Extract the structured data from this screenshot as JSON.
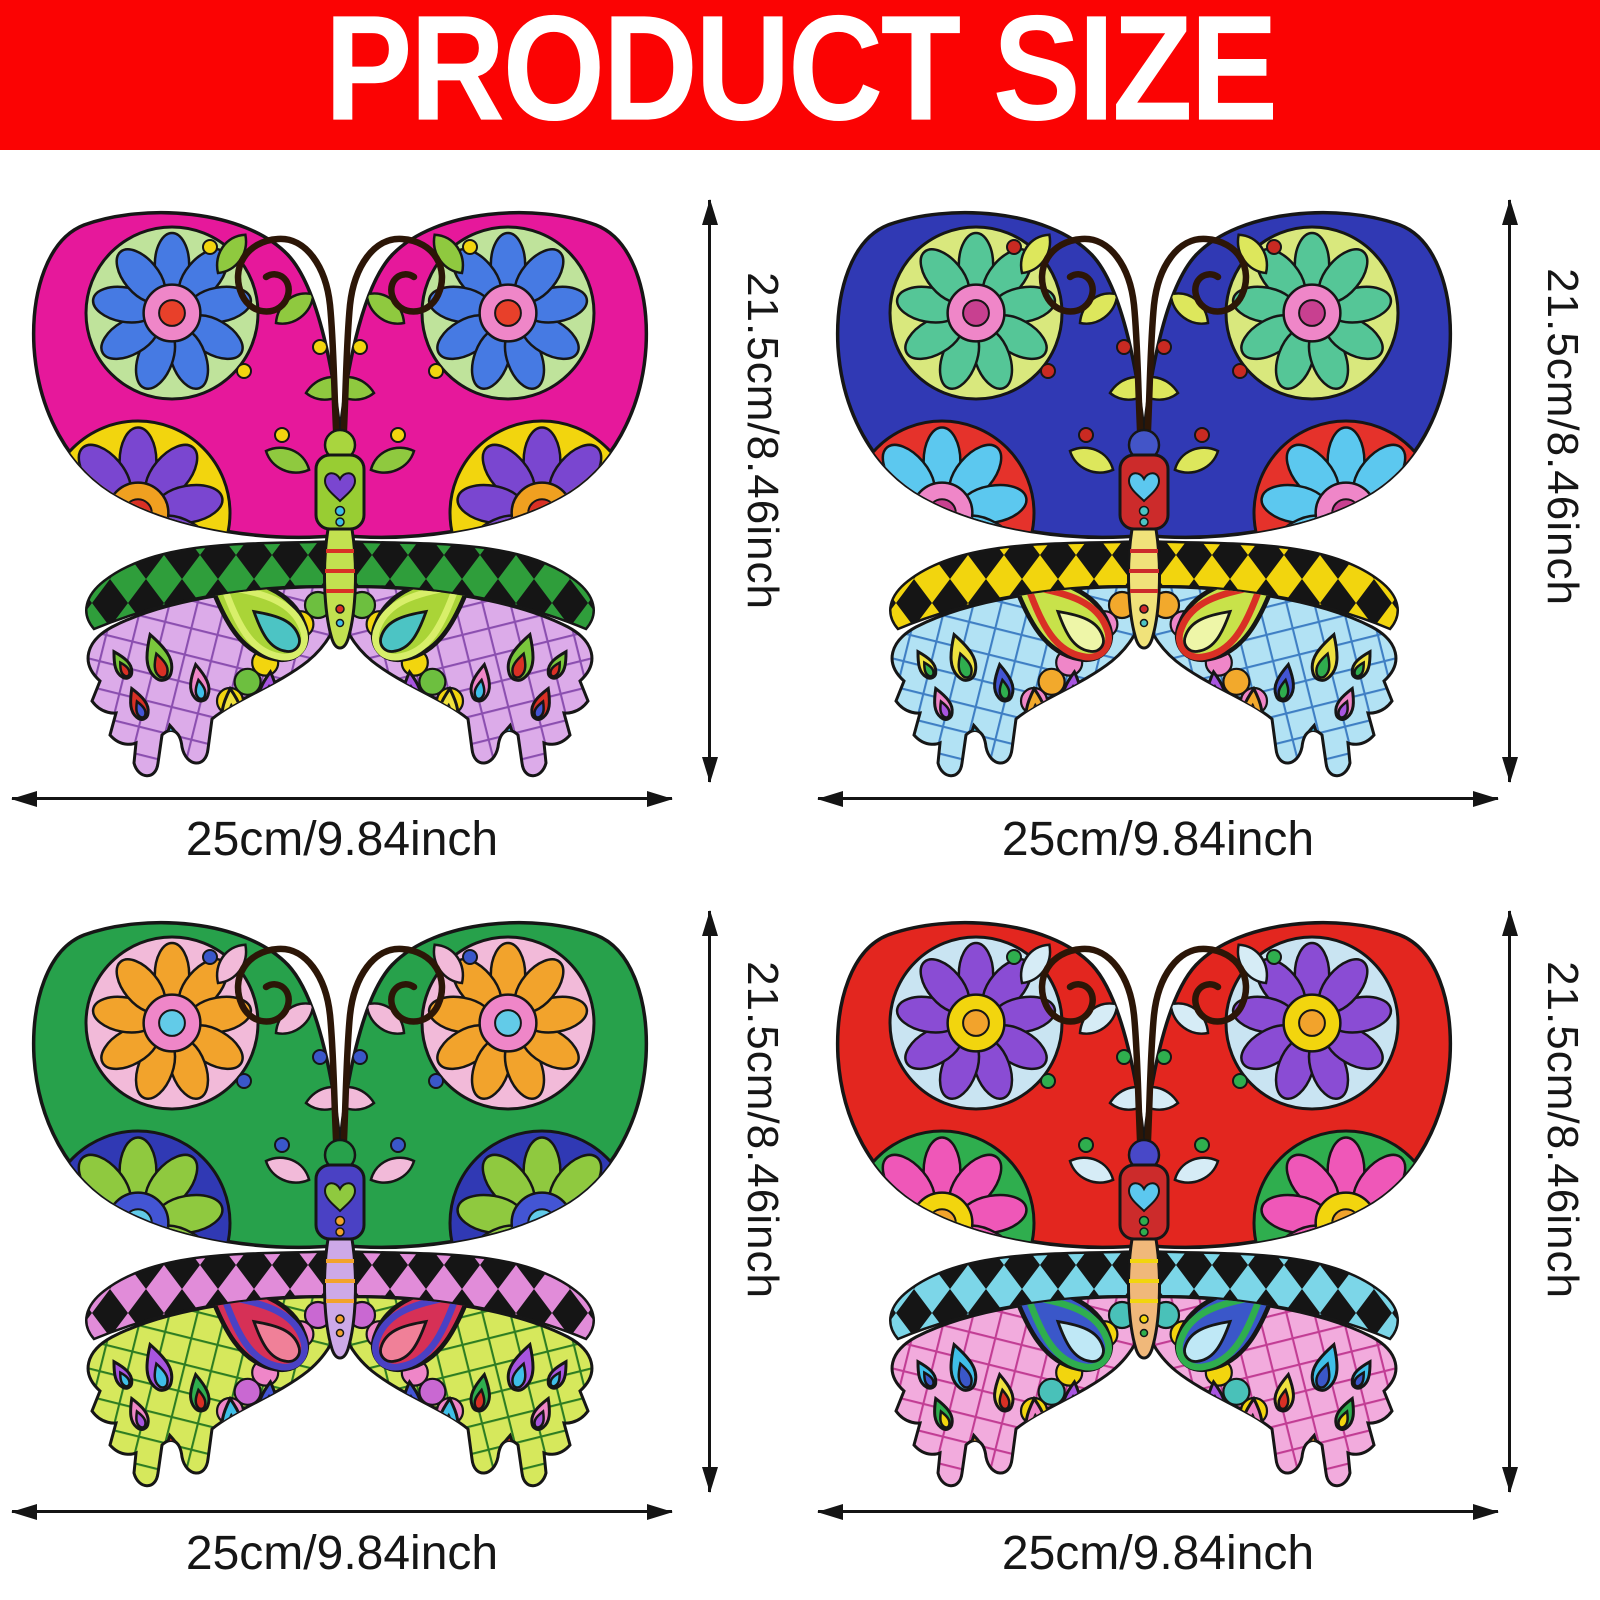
{
  "banner": {
    "title": "PRODUCT SIZE",
    "background": "#fb0303",
    "text_color": "#ffffff"
  },
  "dimensions": {
    "height": "21.5cm/8.46inch",
    "width": "25cm/9.84inch"
  },
  "butterflies": [
    {
      "position": "top-left",
      "theme": "magenta upper wings, blue and purple daisies, green-black harlequin band, lavender grid lower wings",
      "palette": {
        "wing": "#e6189b",
        "ringA": "#bfe39b",
        "petA": "#467ae3",
        "inA": "#ef86c8",
        "cenA": "#e8402a",
        "ringB": "#f2d50e",
        "petB": "#7a46d0",
        "inB": "#f0a020",
        "cenB": "#d93025",
        "leaf": "#8fc93f",
        "dot": "#f2d50e",
        "band": "#2f9e3b",
        "gridBg": "#dcabe9",
        "gridLine": "#8b4fb0",
        "scallop": "#6dbf3f",
        "scallop2": "#f2d50e",
        "pFill": "#aad437",
        "pRing": "#d8ef6a",
        "pInner": "#4cc4c4",
        "drops": [
          [
            "#7ac83c",
            "#d93025"
          ],
          [
            "#ef86c8",
            "#3fbfe8"
          ],
          [
            "#d93025",
            "#4355d4"
          ],
          [
            "#efe23f",
            "#2fae4e"
          ],
          [
            "#3fbfe8",
            "#f2d50e"
          ],
          [
            "#a855e0",
            "#ef86c8"
          ]
        ],
        "head": "#a9d53e",
        "thorax": "#98cd33",
        "heart": "#7a46d0",
        "abd": "#c2e050",
        "stripe": "#d93025",
        "bdot": "#3fbfe8",
        "ant": "#2c1607"
      }
    },
    {
      "position": "top-right",
      "theme": "indigo upper wings, teal and sky daisies, yellow-black harlequin band, light blue grid lower wings",
      "palette": {
        "wing": "#3039b4",
        "ringA": "#d9e87d",
        "petA": "#55c697",
        "inA": "#ef86c8",
        "cenA": "#c84090",
        "ringB": "#e5322b",
        "petB": "#5cc8ef",
        "inB": "#ef86c8",
        "cenB": "#c84090",
        "leaf": "#dde75c",
        "dot": "#c92a22",
        "band": "#f2d50e",
        "gridBg": "#b2e2f4",
        "gridLine": "#3f7fc4",
        "scallop": "#f2a92c",
        "scallop2": "#ef86c8",
        "pFill": "#c8e24a",
        "pRing": "#d93025",
        "pInner": "#eef6a8",
        "drops": [
          [
            "#efe23f",
            "#2fae4e"
          ],
          [
            "#4355d4",
            "#2fae4e"
          ],
          [
            "#ef86c8",
            "#a855e0"
          ],
          [
            "#f2a92c",
            "#d93025"
          ],
          [
            "#3fbfe8",
            "#efe23f"
          ],
          [
            "#a855e0",
            "#4355d4"
          ]
        ],
        "head": "#4355c8",
        "thorax": "#cc2b2b",
        "heart": "#5cc8ef",
        "abd": "#f0e27a",
        "stripe": "#cc2b2b",
        "bdot": "#4cc4c4",
        "ant": "#2c1607"
      }
    },
    {
      "position": "bottom-left",
      "theme": "green upper wings, orange and lime daisies, pink-black harlequin band, yellow-green grid lower wings",
      "palette": {
        "wing": "#27a14b",
        "ringA": "#f2bad9",
        "petA": "#f2a32c",
        "inA": "#ef86c8",
        "cenA": "#62cbe8",
        "ringB": "#3039b4",
        "petB": "#8fc93f",
        "inB": "#4355d4",
        "cenB": "#62cbe8",
        "leaf": "#f2bad9",
        "dot": "#3a57c9",
        "band": "#e18cd9",
        "gridBg": "#d6e85c",
        "gridLine": "#2e7d22",
        "scallop": "#c968d2",
        "scallop2": "#ef86c8",
        "pFill": "#d63056",
        "pRing": "#4a41c4",
        "pInner": "#f08098",
        "drops": [
          [
            "#a855e0",
            "#3fbfe8"
          ],
          [
            "#2fae4e",
            "#d93025"
          ],
          [
            "#ef86c8",
            "#a855e0"
          ],
          [
            "#3fbfe8",
            "#efe23f"
          ],
          [
            "#d93025",
            "#f2d50e"
          ],
          [
            "#4355d4",
            "#ef86c8"
          ]
        ],
        "head": "#27a14b",
        "thorax": "#4a41c4",
        "heart": "#8fc93f",
        "abd": "#cda9e8",
        "stripe": "#f2a32c",
        "bdot": "#f2a32c",
        "ant": "#2c1607"
      }
    },
    {
      "position": "bottom-right",
      "theme": "red upper wings, purple and pink daisies, teal-black harlequin band, pink grid lower wings",
      "palette": {
        "wing": "#e3261f",
        "ringA": "#c9e4f2",
        "petA": "#8a4cd4",
        "inA": "#f2d50e",
        "cenA": "#f2a32c",
        "ringB": "#2fae4e",
        "petB": "#ef57b8",
        "inB": "#f2d50e",
        "cenB": "#f2a32c",
        "leaf": "#d6ecf6",
        "dot": "#2fae4e",
        "band": "#7cd6e8",
        "gridBg": "#f2abdd",
        "gridLine": "#c23d94",
        "scallop": "#49c1b9",
        "scallop2": "#f2d50e",
        "pFill": "#3a57c9",
        "pRing": "#2fae4e",
        "pInner": "#bfe8f6",
        "drops": [
          [
            "#3fbfe8",
            "#3a57c9"
          ],
          [
            "#efe23f",
            "#d93025"
          ],
          [
            "#2fae4e",
            "#f2d50e"
          ],
          [
            "#ef86c8",
            "#a855e0"
          ],
          [
            "#f2a32c",
            "#d93025"
          ],
          [
            "#a855e0",
            "#3fbfe8"
          ]
        ],
        "head": "#4848c8",
        "thorax": "#cc2b2b",
        "heart": "#5cc8ef",
        "abd": "#f0b87a",
        "stripe": "#f2d50e",
        "bdot": "#2fae4e",
        "ant": "#2c1607"
      }
    }
  ]
}
